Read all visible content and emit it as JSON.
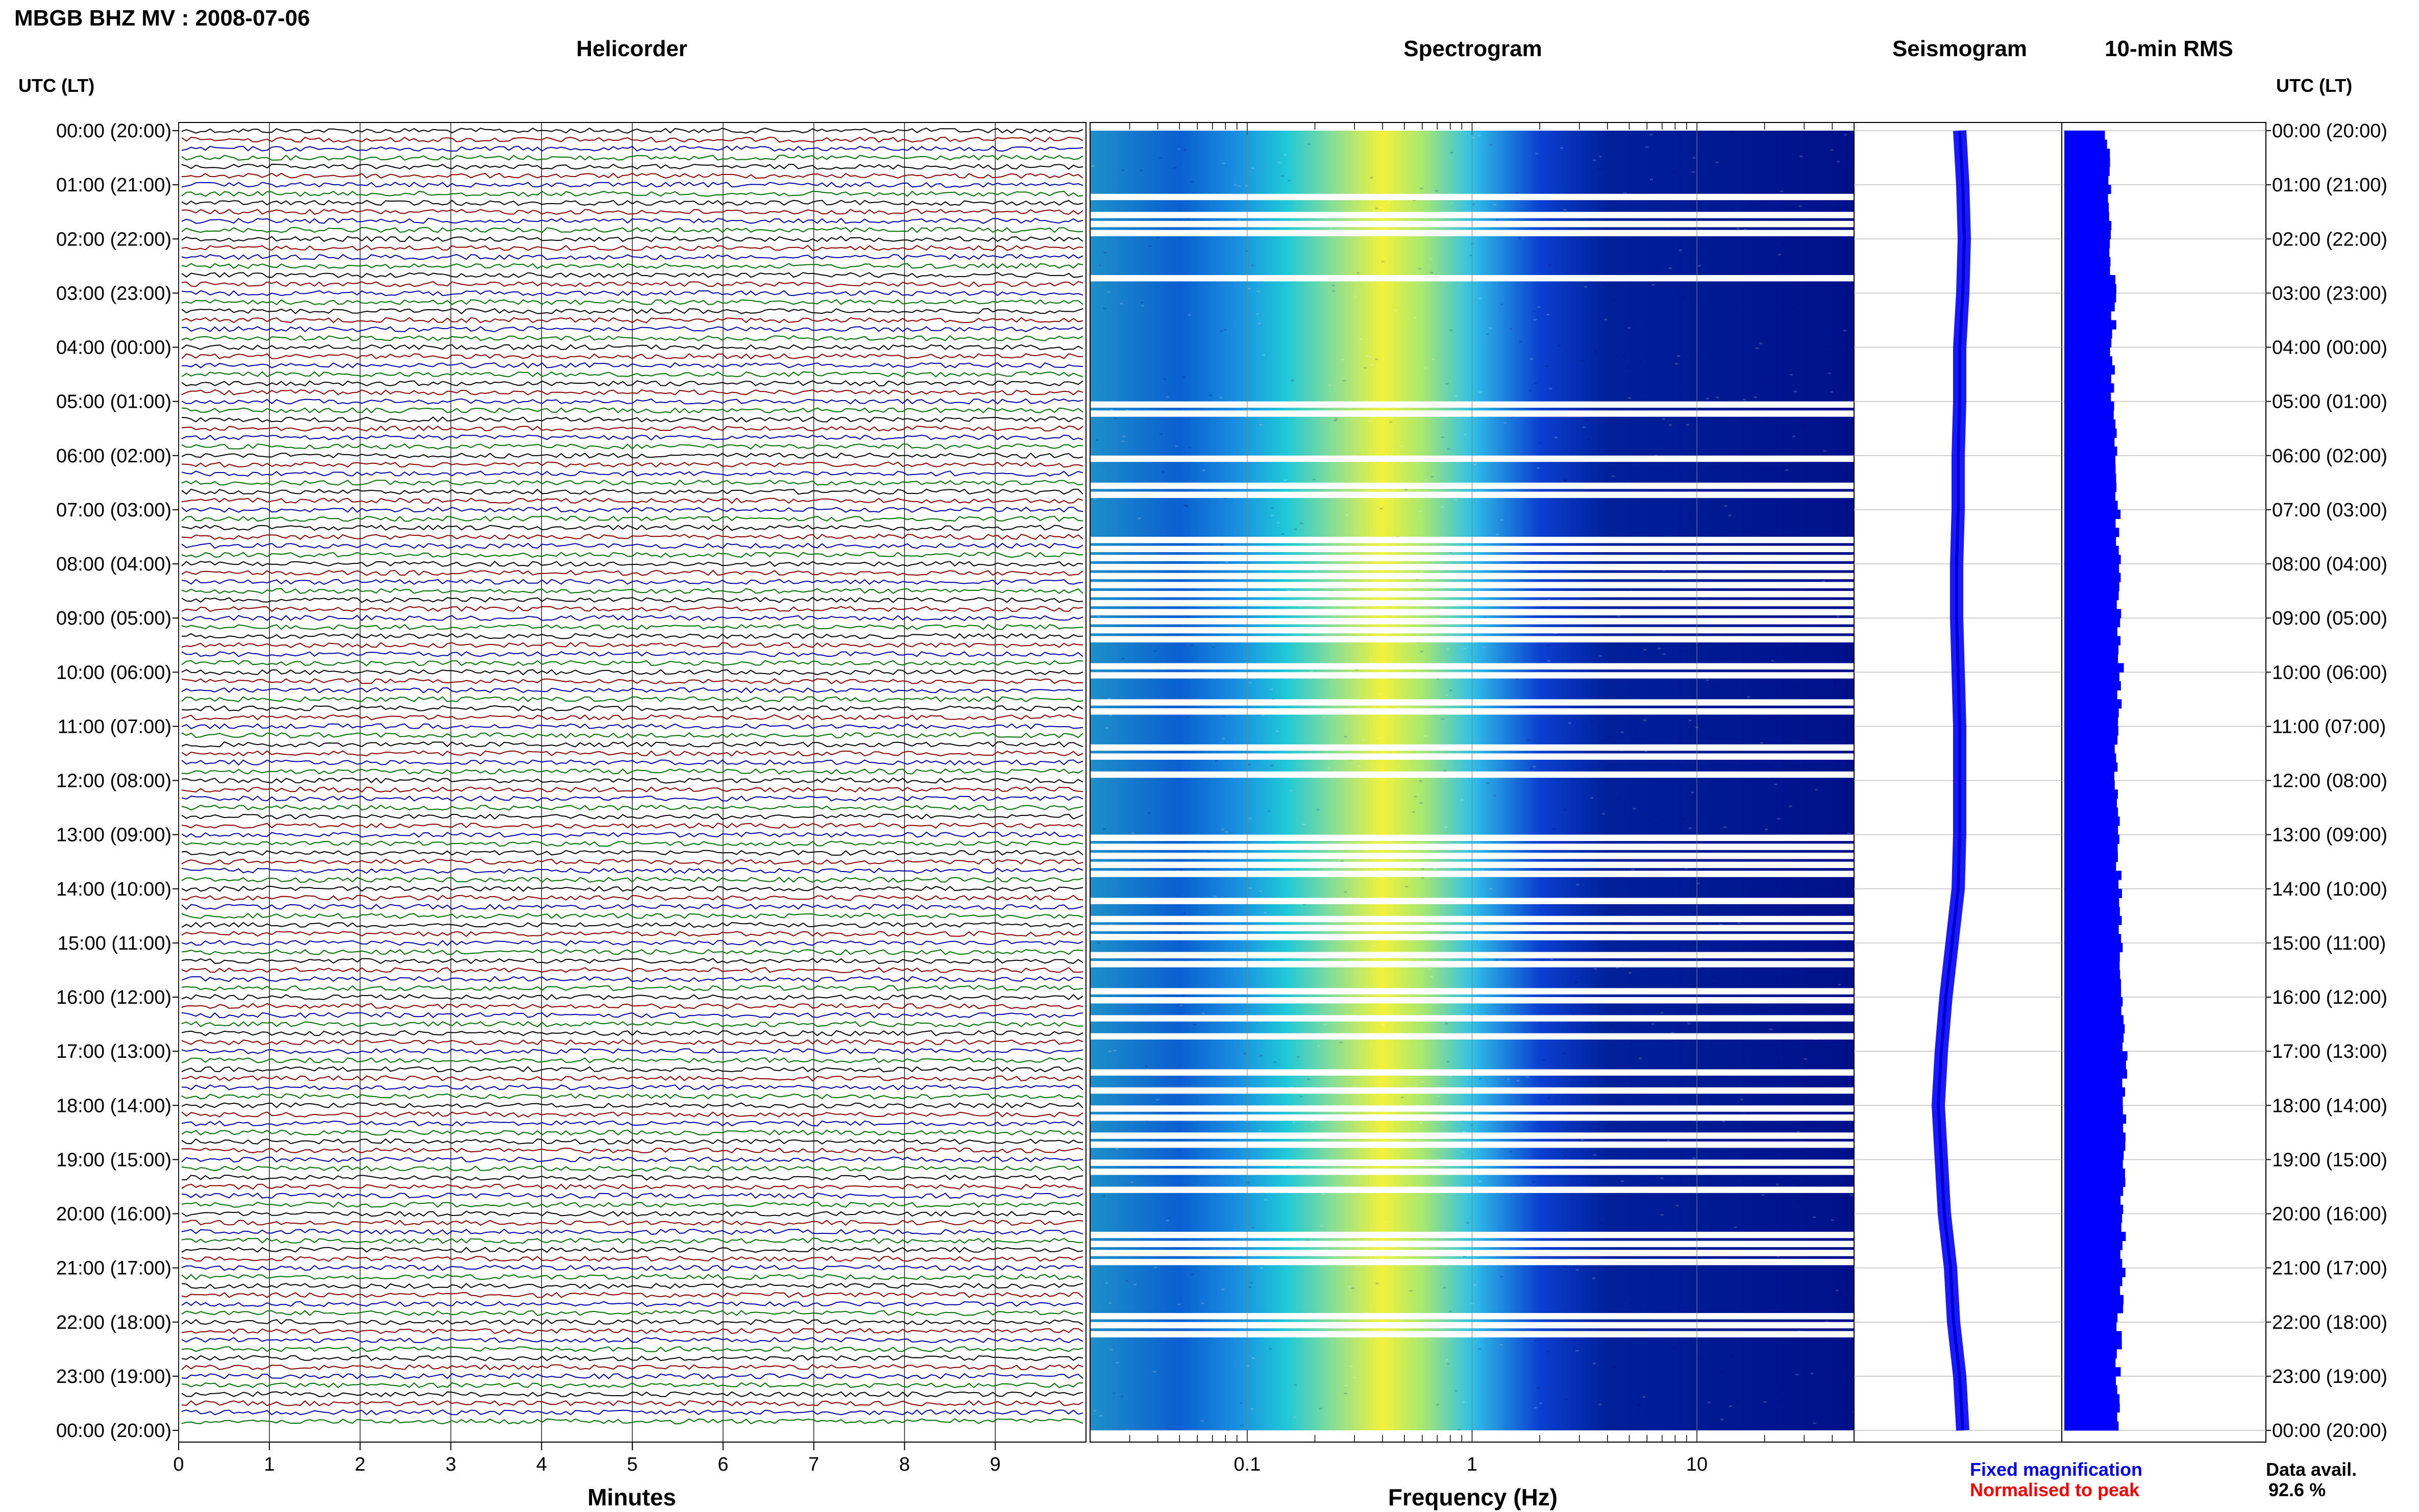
{
  "header": {
    "station_title": "MBGB BHZ MV : 2008-07-06",
    "utc_label_left": "UTC (LT)",
    "utc_label_right": "UTC (LT)"
  },
  "panels": {
    "helicorder_title": "Helicorder",
    "spectrogram_title": "Spectrogram",
    "seismogram_title": "Seismogram",
    "rms_title": "10-min RMS"
  },
  "legend": {
    "fixed_magnification": "Fixed magnification",
    "fixed_color": "#0000ff",
    "normalised_to_peak": "Normalised to peak",
    "normalised_color": "#ff0000",
    "data_avail_label": "Data avail.",
    "data_avail_value": "92.6 %"
  },
  "colors": {
    "trace_cycle": [
      "#000000",
      "#8b0000",
      "#0000aa",
      "#007000"
    ],
    "rms_bar": "#0000ff",
    "seismogram": "#0000ff",
    "spectrogram_low": "#00008b",
    "spectrogram_high": "#ffff00"
  },
  "chart_data": [
    {
      "type": "line",
      "name": "helicorder",
      "title": "Helicorder",
      "xlabel": "Minutes",
      "x_ticks": [
        "0",
        "1",
        "2",
        "3",
        "4",
        "5",
        "6",
        "7",
        "8",
        "9"
      ],
      "xlim": [
        0,
        10
      ],
      "rows_per_hour": 6,
      "y_ticks": [
        "00:00 (20:00)",
        "01:00 (21:00)",
        "02:00 (22:00)",
        "03:00 (23:00)",
        "04:00 (00:00)",
        "05:00 (01:00)",
        "06:00 (02:00)",
        "07:00 (03:00)",
        "08:00 (04:00)",
        "09:00 (05:00)",
        "10:00 (06:00)",
        "11:00 (07:00)",
        "12:00 (08:00)",
        "13:00 (09:00)",
        "14:00 (10:00)",
        "15:00 (11:00)",
        "16:00 (12:00)",
        "17:00 (13:00)",
        "18:00 (14:00)",
        "19:00 (15:00)",
        "20:00 (16:00)",
        "21:00 (17:00)",
        "22:00 (18:00)",
        "23:00 (19:00)",
        "00:00 (20:00)"
      ]
    },
    {
      "type": "heatmap",
      "name": "spectrogram",
      "title": "Spectrogram",
      "xlabel": "Frequency (Hz)",
      "x_scale": "log",
      "xlim": [
        0.02,
        50
      ],
      "x_ticks": [
        "0.1",
        "1",
        "10"
      ],
      "peak_band_hz": [
        0.25,
        0.6
      ],
      "gap_rows": [
        7,
        9,
        10,
        11,
        16,
        30,
        31,
        36,
        39,
        40,
        45,
        46,
        47,
        48,
        49,
        50,
        51,
        52,
        53,
        54,
        55,
        56,
        59,
        60,
        63,
        64,
        68,
        69,
        71,
        78,
        79,
        80,
        81,
        82,
        85,
        87,
        88,
        89,
        91,
        92,
        95,
        96,
        98,
        100,
        104,
        106,
        108,
        109,
        111,
        112,
        114,
        115,
        117,
        122,
        123,
        124,
        125,
        131,
        132,
        133
      ]
    },
    {
      "type": "line",
      "name": "seismogram",
      "title": "Seismogram",
      "x": [
        0,
        1,
        2,
        3,
        4,
        5,
        6,
        7,
        8,
        9,
        10,
        11,
        12,
        13,
        14,
        15,
        16,
        17,
        18,
        19,
        20,
        21,
        22,
        23,
        24
      ],
      "offset": [
        0,
        0.1,
        0.15,
        0.1,
        0,
        0,
        -0.05,
        -0.05,
        -0.1,
        -0.1,
        -0.05,
        0,
        0,
        0,
        -0.05,
        -0.25,
        -0.45,
        -0.6,
        -0.7,
        -0.6,
        -0.5,
        -0.3,
        -0.2,
        0,
        0.1
      ]
    },
    {
      "type": "bar",
      "name": "10-min RMS",
      "title": "10-min RMS",
      "orientation": "horizontal",
      "x_hours": [
        0,
        1,
        2,
        3,
        4,
        5,
        6,
        7,
        8,
        9,
        10,
        11,
        12,
        13,
        14,
        15,
        16,
        17,
        18,
        19,
        20,
        21,
        22,
        23,
        24
      ],
      "rms_relative": [
        0.55,
        0.6,
        0.58,
        0.66,
        0.62,
        0.65,
        0.68,
        0.7,
        0.7,
        0.72,
        0.75,
        0.68,
        0.66,
        0.7,
        0.72,
        0.74,
        0.76,
        0.8,
        0.78,
        0.76,
        0.78,
        0.76,
        0.72,
        0.7,
        0.68
      ]
    }
  ]
}
